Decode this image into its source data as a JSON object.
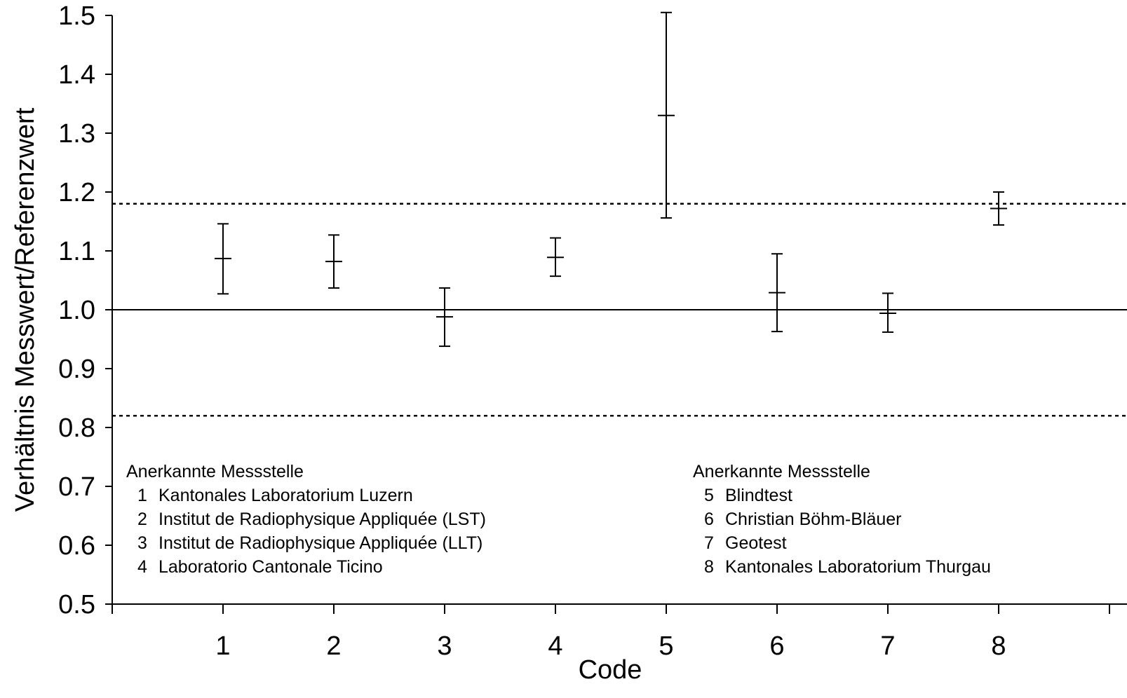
{
  "chart_data": {
    "type": "scatter",
    "xlabel": "Code",
    "ylabel": "Verhältnis Messwert/Referenzwert",
    "xlim": [
      0,
      9
    ],
    "ylim": [
      0.5,
      1.5
    ],
    "x_ticks": [
      "1",
      "2",
      "3",
      "4",
      "5",
      "6",
      "7",
      "8"
    ],
    "y_ticks": [
      "0.5",
      "0.6",
      "0.7",
      "0.8",
      "0.9",
      "1.0",
      "1.1",
      "1.2",
      "1.3",
      "1.4",
      "1.5"
    ],
    "reference_line": 1.0,
    "tolerance_lines": [
      1.18,
      0.82
    ],
    "points": [
      {
        "x": 1,
        "y": 1.087,
        "lower": 1.027,
        "upper": 1.146
      },
      {
        "x": 2,
        "y": 1.082,
        "lower": 1.037,
        "upper": 1.127
      },
      {
        "x": 3,
        "y": 0.988,
        "lower": 0.938,
        "upper": 1.037
      },
      {
        "x": 4,
        "y": 1.089,
        "lower": 1.057,
        "upper": 1.122
      },
      {
        "x": 5,
        "y": 1.33,
        "lower": 1.156,
        "upper": 1.505
      },
      {
        "x": 6,
        "y": 1.029,
        "lower": 0.963,
        "upper": 1.095
      },
      {
        "x": 7,
        "y": 0.994,
        "lower": 0.962,
        "upper": 1.028
      },
      {
        "x": 8,
        "y": 1.172,
        "lower": 1.144,
        "upper": 1.2
      }
    ],
    "colors": {
      "line": "#000000",
      "background": "#ffffff"
    }
  },
  "legend_left": {
    "header": "Anerkannte  Messstelle",
    "items": [
      {
        "code": "1",
        "label": "Kantonales Laboratorium Luzern"
      },
      {
        "code": "2",
        "label": "Institut de Radiophysique Appliquée (LST)"
      },
      {
        "code": "3",
        "label": "Institut de Radiophysique Appliquée (LLT)"
      },
      {
        "code": "4",
        "label": "Laboratorio Cantonale Ticino"
      }
    ]
  },
  "legend_right": {
    "header": "Anerkannte  Messstelle",
    "items": [
      {
        "code": "5",
        "label": "Blindtest"
      },
      {
        "code": "6",
        "label": "Christian Böhm-Bläuer"
      },
      {
        "code": "7",
        "label": "Geotest"
      },
      {
        "code": "8",
        "label": "Kantonales Laboratorium Thurgau"
      }
    ]
  }
}
